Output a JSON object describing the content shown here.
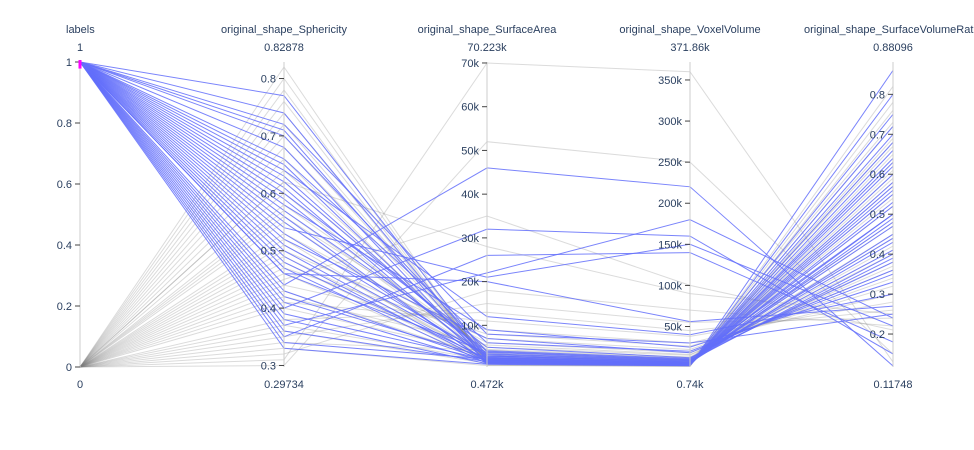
{
  "chart_data": {
    "type": "parcoords",
    "title": "",
    "colors": {
      "selected": "#636efa",
      "unselected": "#7f7f7f",
      "brush": "#ff00ff",
      "text": "#2a3f5f",
      "axis": "#cccccc"
    },
    "dimensions": [
      {
        "label": "labels",
        "range_max_label": "1",
        "range_min_label": "0",
        "range": [
          0,
          1
        ],
        "ticks": [
          0,
          0.2,
          0.4,
          0.6,
          0.8,
          1
        ],
        "tick_labels": [
          "0",
          "0.2",
          "0.4",
          "0.6",
          "0.8",
          "1"
        ],
        "constraint_range": [
          0.985,
          1
        ]
      },
      {
        "label": "original_shape_Sphericity",
        "range_max_label": "0.82878",
        "range_min_label": "0.29734",
        "range": [
          0.29734,
          0.82878
        ],
        "ticks": [
          0.3,
          0.4,
          0.5,
          0.6,
          0.7,
          0.8
        ],
        "tick_labels": [
          "0.3",
          "0.4",
          "0.5",
          "0.6",
          "0.7",
          "0.8"
        ]
      },
      {
        "label": "original_shape_SurfaceArea",
        "range_max_label": "70.223k",
        "range_min_label": "0.472k",
        "range": [
          472,
          70223
        ],
        "ticks": [
          10000,
          20000,
          30000,
          40000,
          50000,
          60000,
          70000
        ],
        "tick_labels": [
          "10k",
          "20k",
          "30k",
          "40k",
          "50k",
          "60k",
          "70k"
        ]
      },
      {
        "label": "original_shape_VoxelVolume",
        "range_max_label": "371.86k",
        "range_min_label": "0.74k",
        "range": [
          740,
          371860
        ],
        "ticks": [
          50000,
          100000,
          150000,
          200000,
          250000,
          300000,
          350000
        ],
        "tick_labels": [
          "50k",
          "100k",
          "150k",
          "200k",
          "250k",
          "300k",
          "350k"
        ]
      },
      {
        "label": "original_shape_SurfaceVolumeRatio",
        "range_max_label": "0.88096",
        "range_min_label": "0.11748",
        "range": [
          0.11748,
          0.88096
        ],
        "ticks": [
          0.2,
          0.3,
          0.4,
          0.5,
          0.6,
          0.7,
          0.8
        ],
        "tick_labels": [
          "0.2",
          "0.3",
          "0.4",
          "0.5",
          "0.6",
          "0.7",
          "0.8"
        ]
      }
    ],
    "selected_samples": [
      [
        1,
        0.77,
        3000,
        8000,
        0.4
      ],
      [
        1,
        0.74,
        2500,
        6000,
        0.45
      ],
      [
        1,
        0.72,
        8000,
        30000,
        0.25
      ],
      [
        1,
        0.71,
        2000,
        5000,
        0.55
      ],
      [
        1,
        0.7,
        4000,
        10000,
        0.5
      ],
      [
        1,
        0.68,
        1500,
        3000,
        0.62
      ],
      [
        1,
        0.66,
        6000,
        20000,
        0.35
      ],
      [
        1,
        0.65,
        2200,
        4500,
        0.58
      ],
      [
        1,
        0.63,
        3000,
        7000,
        0.48
      ],
      [
        1,
        0.62,
        3500,
        9000,
        0.43
      ],
      [
        1,
        0.61,
        1800,
        3500,
        0.66
      ],
      [
        1,
        0.6,
        5000,
        12000,
        0.38
      ],
      [
        1,
        0.59,
        2600,
        6500,
        0.52
      ],
      [
        1,
        0.57,
        4200,
        11000,
        0.41
      ],
      [
        1,
        0.56,
        1400,
        2800,
        0.72
      ],
      [
        1,
        0.55,
        1700,
        3300,
        0.68
      ],
      [
        1,
        0.54,
        21000,
        150000,
        0.22
      ],
      [
        1,
        0.53,
        2900,
        7000,
        0.47
      ],
      [
        1,
        0.51,
        3300,
        8500,
        0.44
      ],
      [
        1,
        0.5,
        2000,
        4500,
        0.57
      ],
      [
        1,
        0.49,
        1600,
        3200,
        0.64
      ],
      [
        1,
        0.48,
        2400,
        5500,
        0.53
      ],
      [
        1,
        0.47,
        1300,
        2600,
        0.75
      ],
      [
        1,
        0.46,
        3800,
        9500,
        0.39
      ],
      [
        1,
        0.44,
        46000,
        220000,
        0.12
      ],
      [
        1,
        0.43,
        1900,
        4000,
        0.6
      ],
      [
        1,
        0.42,
        2700,
        6000,
        0.5
      ],
      [
        1,
        0.41,
        1500,
        3000,
        0.7
      ],
      [
        1,
        0.4,
        32000,
        160000,
        0.15
      ],
      [
        1,
        0.39,
        2100,
        4800,
        0.56
      ],
      [
        1,
        0.38,
        1200,
        2400,
        0.8
      ],
      [
        1,
        0.37,
        22000,
        180000,
        0.24
      ],
      [
        1,
        0.36,
        1700,
        3600,
        0.63
      ],
      [
        1,
        0.35,
        26000,
        140000,
        0.18
      ],
      [
        1,
        0.34,
        2300,
        5200,
        0.49
      ],
      [
        1,
        0.33,
        1100,
        2200,
        0.86
      ],
      [
        1,
        0.46,
        20000,
        56000,
        0.27
      ],
      [
        1,
        0.64,
        12000,
        40000,
        0.3
      ],
      [
        1,
        0.58,
        9000,
        25000,
        0.33
      ],
      [
        1,
        0.52,
        7000,
        18000,
        0.36
      ]
    ],
    "unselected_samples": [
      [
        0,
        0.82,
        1000,
        2000,
        0.78
      ],
      [
        0,
        0.8,
        1200,
        2600,
        0.72
      ],
      [
        0,
        0.78,
        900,
        1800,
        0.82
      ],
      [
        0,
        0.76,
        1500,
        3200,
        0.65
      ],
      [
        0,
        0.74,
        1800,
        4000,
        0.6
      ],
      [
        0,
        0.72,
        2200,
        5000,
        0.55
      ],
      [
        0,
        0.7,
        2500,
        6000,
        0.52
      ],
      [
        0,
        0.68,
        3000,
        7500,
        0.48
      ],
      [
        0,
        0.66,
        1400,
        2900,
        0.68
      ],
      [
        0,
        0.64,
        3500,
        9000,
        0.45
      ],
      [
        0,
        0.62,
        4000,
        11000,
        0.42
      ],
      [
        0,
        0.6,
        2000,
        4600,
        0.58
      ],
      [
        0,
        0.58,
        4500,
        13000,
        0.4
      ],
      [
        0,
        0.56,
        5000,
        15000,
        0.38
      ],
      [
        0,
        0.55,
        2700,
        6400,
        0.5
      ],
      [
        0,
        0.53,
        6000,
        18000,
        0.36
      ],
      [
        0,
        0.52,
        1600,
        3400,
        0.63
      ],
      [
        0,
        0.5,
        7000,
        22000,
        0.34
      ],
      [
        0,
        0.49,
        3200,
        8000,
        0.47
      ],
      [
        0,
        0.47,
        8000,
        26000,
        0.32
      ],
      [
        0,
        0.46,
        1900,
        4200,
        0.59
      ],
      [
        0,
        0.44,
        9000,
        30000,
        0.3
      ],
      [
        0,
        0.43,
        2400,
        5600,
        0.54
      ],
      [
        0,
        0.41,
        11000,
        38000,
        0.28
      ],
      [
        0,
        0.4,
        3600,
        9200,
        0.44
      ],
      [
        0,
        0.38,
        13000,
        45000,
        0.26
      ],
      [
        0,
        0.37,
        2100,
        4900,
        0.57
      ],
      [
        0,
        0.35,
        15000,
        55000,
        0.24
      ],
      [
        0,
        0.34,
        4300,
        12000,
        0.41
      ],
      [
        0,
        0.32,
        18000,
        70000,
        0.22
      ],
      [
        0,
        0.31,
        70000,
        360000,
        0.13
      ],
      [
        0,
        0.3,
        52000,
        250000,
        0.15
      ],
      [
        0,
        0.45,
        35000,
        100000,
        0.21
      ],
      [
        0,
        0.62,
        28000,
        90000,
        0.25
      ],
      [
        0,
        0.57,
        3000,
        7200,
        0.73
      ],
      [
        0,
        0.51,
        2600,
        6100,
        0.67
      ],
      [
        0,
        0.48,
        1700,
        3700,
        0.61
      ],
      [
        0,
        0.42,
        5500,
        16000,
        0.37
      ],
      [
        0,
        0.36,
        1300,
        2700,
        0.69
      ],
      [
        0,
        0.33,
        800,
        1500,
        0.76
      ]
    ]
  }
}
